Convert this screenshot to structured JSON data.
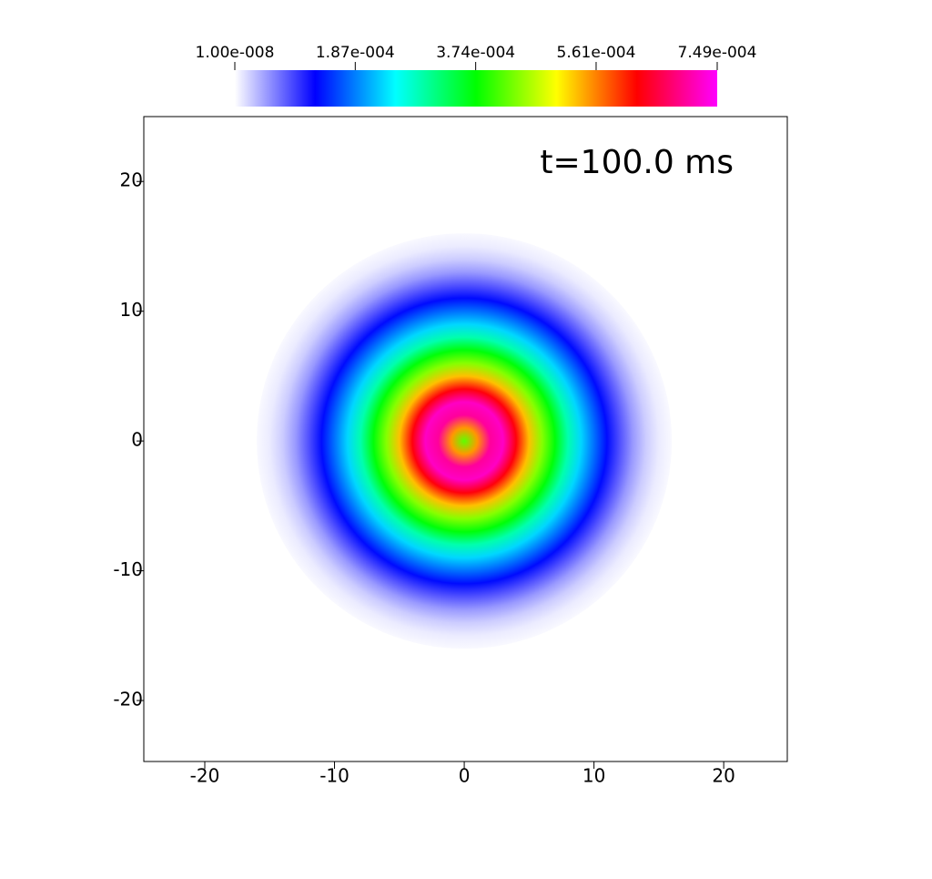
{
  "chart_data": {
    "type": "radial-field",
    "annotation": "t=100.0 ms",
    "x": [
      0,
      1,
      2,
      3,
      4,
      5,
      6,
      7,
      8,
      9,
      10,
      11,
      12,
      13,
      14,
      15,
      16
    ],
    "values": [
      0.00042,
      0.00055,
      0.0007,
      0.00072,
      0.00063,
      0.00053,
      0.00044,
      0.00037,
      0.00029,
      0.00023,
      0.00018,
      0.00013,
      8.5e-05,
      5e-05,
      2.5e-05,
      1e-05,
      3e-06
    ],
    "xlim": [
      -24.7,
      24.9
    ],
    "ylim": [
      -24.7,
      25
    ],
    "xticks": [
      -20,
      -10,
      0,
      10,
      20
    ],
    "yticks": [
      -20,
      -10,
      0,
      10,
      20
    ],
    "colormap": [
      "#ffffff",
      "#0000ff",
      "#00ffff",
      "#00ff00",
      "#ffff00",
      "#ff0000",
      "#ff00ff"
    ],
    "clim": [
      1e-08,
      0.000749
    ],
    "cticks": [
      {
        "value": 1e-08,
        "label": "1.00e-008"
      },
      {
        "value": 0.000187,
        "label": "1.87e-004"
      },
      {
        "value": 0.000374,
        "label": "3.74e-004"
      },
      {
        "value": 0.000561,
        "label": "5.61e-004"
      },
      {
        "value": 0.000749,
        "label": "7.49e-004"
      }
    ]
  }
}
